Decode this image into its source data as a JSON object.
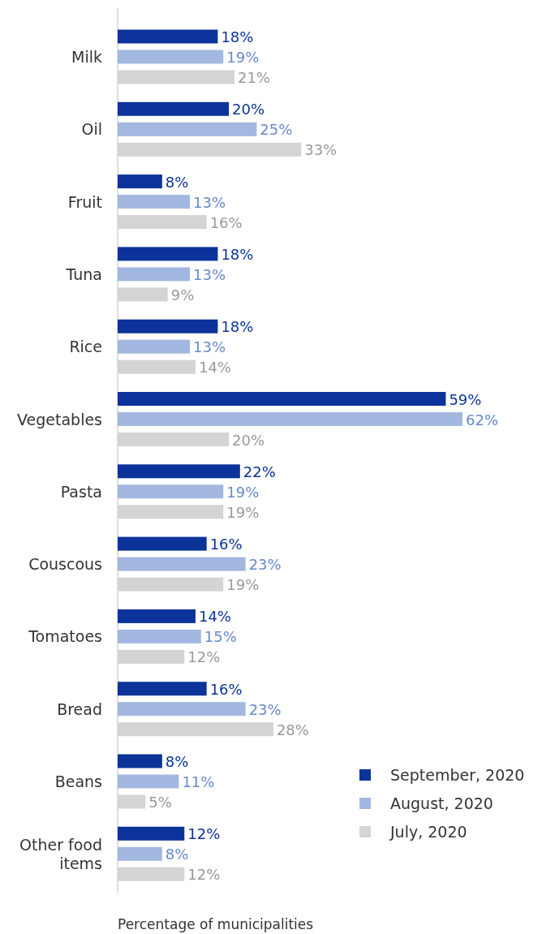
{
  "chart_data": {
    "type": "bar",
    "orientation": "horizontal",
    "xlabel": "Percentage of municipalities",
    "categories": [
      "Milk",
      "Oil",
      "Fruit",
      "Tuna",
      "Rice",
      "Vegetables",
      "Pasta",
      "Couscous",
      "Tomatoes",
      "Bread",
      "Beans",
      "Other food items"
    ],
    "series": [
      {
        "name": "September, 2020",
        "color": "#0b3399",
        "values": [
          18,
          20,
          8,
          18,
          18,
          59,
          22,
          16,
          14,
          16,
          8,
          12
        ],
        "value_labels": [
          "18%",
          "20%",
          "8%",
          "18%",
          "18%",
          "59%",
          "22%",
          "16%",
          "14%",
          "16%",
          "8%",
          "12%"
        ]
      },
      {
        "name": "August, 2020",
        "color": "#a3b8e0",
        "values": [
          19,
          25,
          13,
          13,
          13,
          62,
          19,
          23,
          15,
          23,
          11,
          8
        ],
        "value_labels": [
          "19%",
          "25%",
          "13%",
          "13%",
          "13%",
          "62%",
          "19%",
          "23%",
          "15%",
          "23%",
          "11%",
          "8%"
        ]
      },
      {
        "name": "July, 2020",
        "color": "#d4d4d4",
        "values": [
          21,
          33,
          16,
          9,
          14,
          20,
          19,
          19,
          12,
          28,
          5,
          12
        ],
        "value_labels": [
          "21%",
          "33%",
          "16%",
          "9%",
          "14%",
          "20%",
          "19%",
          "19%",
          "12%",
          "28%",
          "5%",
          "12%"
        ]
      }
    ],
    "legend": "bottom right"
  }
}
